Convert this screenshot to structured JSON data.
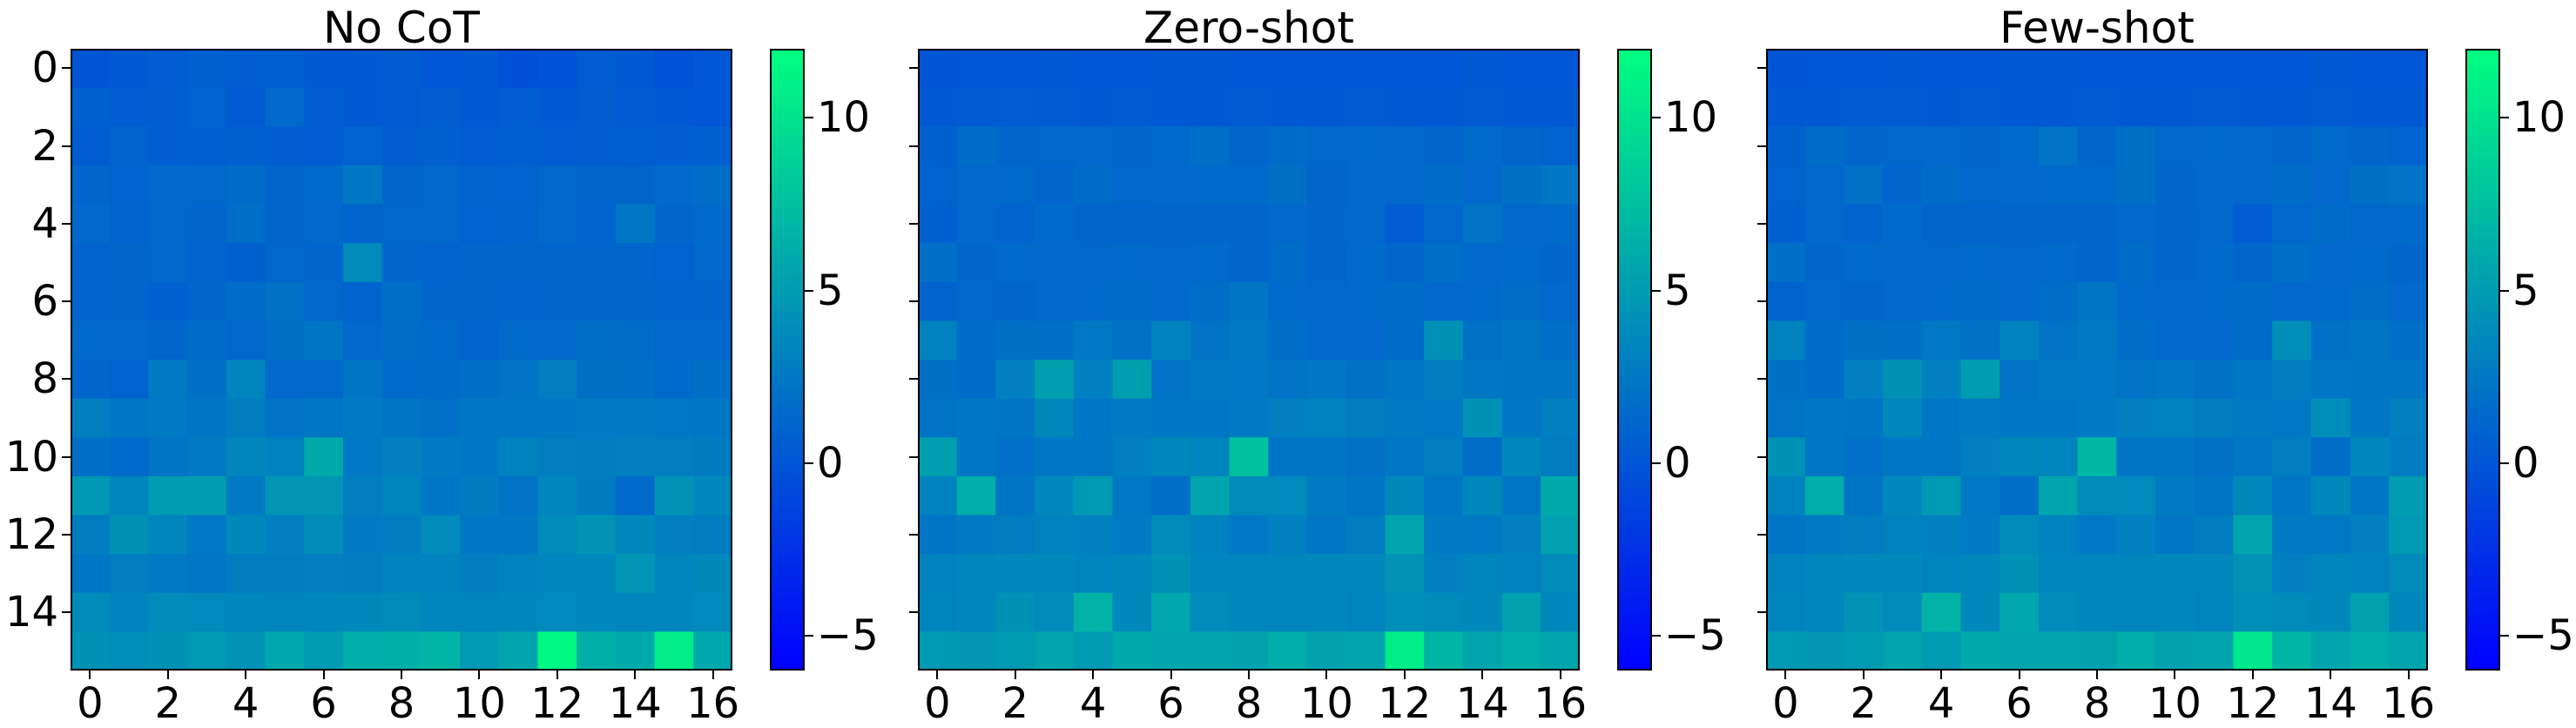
{
  "chart_data": [
    {
      "type": "heatmap",
      "title": "No CoT",
      "rows": 16,
      "cols": 17,
      "x_ticks": [
        "0",
        "2",
        "4",
        "6",
        "8",
        "10",
        "12",
        "14",
        "16"
      ],
      "y_ticks": [
        "0",
        "2",
        "4",
        "6",
        "8",
        "10",
        "12",
        "14"
      ],
      "values": [
        [
          0.0,
          0.3,
          0.5,
          0.8,
          0.6,
          0.7,
          0.2,
          0.3,
          0.4,
          0.1,
          0.3,
          -0.4,
          -0.2,
          0.5,
          0.3,
          -0.2,
          0.1
        ],
        [
          0.8,
          0.5,
          0.6,
          0.9,
          0.4,
          1.4,
          0.5,
          0.3,
          0.4,
          0.6,
          0.3,
          0.5,
          0.3,
          0.6,
          0.4,
          0.2,
          0.1
        ],
        [
          0.5,
          1.0,
          0.6,
          0.7,
          0.8,
          0.6,
          0.5,
          0.9,
          0.6,
          0.8,
          0.5,
          0.7,
          0.5,
          0.6,
          0.7,
          0.6,
          0.8
        ],
        [
          1.2,
          0.9,
          1.4,
          1.3,
          1.6,
          1.1,
          1.5,
          2.4,
          1.2,
          1.3,
          1.0,
          0.9,
          1.3,
          1.1,
          1.2,
          1.4,
          1.7
        ],
        [
          1.4,
          1.0,
          1.3,
          1.1,
          1.8,
          1.2,
          1.4,
          1.1,
          1.3,
          1.3,
          0.9,
          1.0,
          1.4,
          1.0,
          2.3,
          1.2,
          1.5
        ],
        [
          1.0,
          1.2,
          1.3,
          1.0,
          0.8,
          1.3,
          1.1,
          3.8,
          1.2,
          1.0,
          1.1,
          1.2,
          1.1,
          1.1,
          1.1,
          0.9,
          1.3
        ],
        [
          1.0,
          1.1,
          0.8,
          1.2,
          1.6,
          2.0,
          1.3,
          1.0,
          1.8,
          1.1,
          1.2,
          1.0,
          1.1,
          1.2,
          1.2,
          1.0,
          1.1
        ],
        [
          1.5,
          1.4,
          1.2,
          1.6,
          1.3,
          1.9,
          2.2,
          1.4,
          1.7,
          1.5,
          1.0,
          1.5,
          1.4,
          1.8,
          1.7,
          1.3,
          1.4
        ],
        [
          1.2,
          0.9,
          2.6,
          1.8,
          3.3,
          1.4,
          1.3,
          2.2,
          1.5,
          1.6,
          1.8,
          2.1,
          2.9,
          1.9,
          1.8,
          1.5,
          1.8
        ],
        [
          2.9,
          2.4,
          2.6,
          2.2,
          2.8,
          2.1,
          2.4,
          2.6,
          2.2,
          2.0,
          2.4,
          2.4,
          2.4,
          2.6,
          2.6,
          2.5,
          2.4
        ],
        [
          1.8,
          1.5,
          2.2,
          2.6,
          3.4,
          3.2,
          6.0,
          2.5,
          3.0,
          2.6,
          2.4,
          3.2,
          2.9,
          2.8,
          3.0,
          2.9,
          2.7
        ],
        [
          4.7,
          3.4,
          5.0,
          5.1,
          2.6,
          4.5,
          4.5,
          2.9,
          3.3,
          2.4,
          2.7,
          2.1,
          3.4,
          2.7,
          1.5,
          4.4,
          3.5
        ],
        [
          2.8,
          4.2,
          3.4,
          2.5,
          3.6,
          3.0,
          3.9,
          2.6,
          2.8,
          3.8,
          2.4,
          2.4,
          3.8,
          4.4,
          3.6,
          3.0,
          2.8
        ],
        [
          2.4,
          2.9,
          2.6,
          2.3,
          2.8,
          2.8,
          2.9,
          2.8,
          3.2,
          3.2,
          2.8,
          3.2,
          3.3,
          3.6,
          4.5,
          3.4,
          3.6
        ],
        [
          3.8,
          3.2,
          3.8,
          3.7,
          3.5,
          3.4,
          3.5,
          3.6,
          3.8,
          3.4,
          3.4,
          3.5,
          3.7,
          3.5,
          3.4,
          3.4,
          3.7
        ],
        [
          4.2,
          4.0,
          4.2,
          4.8,
          4.4,
          5.8,
          5.0,
          6.2,
          6.4,
          6.8,
          4.8,
          5.6,
          11.6,
          6.4,
          6.0,
          10.8,
          5.8
        ]
      ]
    },
    {
      "type": "heatmap",
      "title": "Zero-shot",
      "rows": 16,
      "cols": 17,
      "x_ticks": [
        "0",
        "2",
        "4",
        "6",
        "8",
        "10",
        "12",
        "14",
        "16"
      ],
      "y_ticks": [
        "0",
        "2",
        "4",
        "6",
        "8",
        "10",
        "12",
        "14"
      ],
      "values": [
        [
          0.0,
          0.1,
          0.1,
          0.2,
          0.1,
          0.1,
          0.2,
          0.2,
          0.1,
          0.1,
          0.1,
          0.1,
          0.1,
          0.1,
          0.2,
          0.1,
          0.1
        ],
        [
          0.2,
          0.4,
          0.5,
          0.4,
          0.3,
          0.4,
          0.3,
          0.2,
          0.4,
          0.3,
          0.3,
          0.4,
          0.3,
          0.3,
          0.4,
          0.2,
          0.2
        ],
        [
          0.8,
          1.6,
          1.2,
          1.3,
          1.4,
          1.2,
          1.5,
          1.8,
          1.2,
          1.6,
          1.3,
          1.5,
          1.4,
          1.2,
          1.5,
          1.2,
          0.9
        ],
        [
          0.9,
          1.3,
          1.5,
          1.1,
          1.6,
          1.3,
          1.4,
          1.5,
          1.5,
          1.9,
          1.2,
          1.4,
          1.3,
          1.6,
          1.4,
          1.9,
          2.4
        ],
        [
          0.8,
          1.4,
          1.0,
          1.5,
          1.2,
          1.1,
          1.2,
          1.2,
          1.1,
          1.4,
          1.2,
          1.3,
          0.5,
          1.3,
          2.1,
          1.3,
          1.5
        ],
        [
          1.8,
          1.2,
          1.5,
          1.4,
          1.3,
          1.5,
          1.3,
          1.5,
          1.1,
          1.6,
          1.1,
          1.5,
          1.2,
          1.8,
          1.4,
          1.5,
          1.2
        ],
        [
          1.0,
          1.3,
          1.2,
          1.4,
          1.5,
          1.6,
          1.4,
          1.7,
          2.2,
          1.5,
          1.3,
          1.5,
          1.6,
          1.4,
          1.5,
          1.7,
          1.4
        ],
        [
          3.2,
          1.6,
          1.9,
          1.8,
          2.5,
          2.0,
          3.2,
          2.1,
          2.6,
          1.7,
          1.3,
          1.4,
          1.6,
          4.3,
          2.0,
          2.2,
          1.8
        ],
        [
          1.9,
          1.6,
          3.0,
          5.2,
          3.0,
          5.2,
          2.1,
          2.6,
          2.5,
          2.1,
          2.3,
          2.0,
          2.4,
          2.8,
          2.3,
          2.2,
          2.2
        ],
        [
          2.1,
          2.4,
          2.2,
          3.6,
          2.4,
          2.6,
          2.4,
          2.4,
          2.6,
          3.0,
          3.2,
          2.8,
          2.6,
          2.5,
          4.3,
          2.4,
          3.0
        ],
        [
          5.2,
          2.4,
          2.0,
          2.4,
          2.4,
          3.0,
          3.6,
          3.3,
          7.6,
          2.2,
          2.2,
          2.0,
          2.3,
          2.9,
          1.7,
          3.5,
          2.8
        ],
        [
          3.2,
          6.2,
          2.2,
          3.5,
          4.8,
          2.5,
          1.8,
          5.6,
          3.8,
          3.7,
          2.6,
          2.2,
          3.6,
          2.4,
          3.6,
          2.4,
          6.0
        ],
        [
          2.2,
          2.6,
          2.8,
          3.2,
          3.1,
          2.6,
          3.8,
          3.2,
          2.5,
          3.0,
          2.4,
          2.8,
          5.6,
          2.6,
          2.5,
          3.0,
          5.4
        ],
        [
          3.2,
          3.4,
          3.6,
          3.6,
          3.3,
          3.5,
          4.2,
          3.3,
          3.3,
          3.4,
          3.6,
          3.6,
          4.4,
          3.0,
          3.3,
          3.2,
          3.8
        ],
        [
          3.3,
          3.5,
          4.2,
          3.8,
          6.6,
          3.6,
          5.8,
          3.8,
          3.5,
          3.4,
          3.5,
          3.3,
          4.1,
          3.8,
          3.6,
          5.3,
          3.5
        ],
        [
          4.8,
          4.6,
          4.9,
          5.6,
          4.9,
          6.0,
          5.6,
          5.6,
          5.4,
          6.2,
          5.4,
          5.6,
          10.8,
          6.8,
          5.6,
          6.2,
          5.6
        ]
      ]
    },
    {
      "type": "heatmap",
      "title": "Few-shot",
      "rows": 16,
      "cols": 17,
      "x_ticks": [
        "0",
        "2",
        "4",
        "6",
        "8",
        "10",
        "12",
        "14",
        "16"
      ],
      "y_ticks": [
        "0",
        "2",
        "4",
        "6",
        "8",
        "10",
        "12",
        "14"
      ],
      "values": [
        [
          0.0,
          0.1,
          0.1,
          0.2,
          0.1,
          0.1,
          0.2,
          0.2,
          0.1,
          0.1,
          0.1,
          0.1,
          0.1,
          0.1,
          0.2,
          0.1,
          0.1
        ],
        [
          0.2,
          0.3,
          0.4,
          0.4,
          0.3,
          0.4,
          0.3,
          0.2,
          0.4,
          0.3,
          0.3,
          0.4,
          0.3,
          0.3,
          0.4,
          0.2,
          0.2
        ],
        [
          0.8,
          1.6,
          1.2,
          1.3,
          1.4,
          1.2,
          1.5,
          2.1,
          1.2,
          1.9,
          1.3,
          1.5,
          1.4,
          1.2,
          1.5,
          1.2,
          0.9
        ],
        [
          0.9,
          1.3,
          2.0,
          1.1,
          1.6,
          1.3,
          1.4,
          1.5,
          1.5,
          1.9,
          1.2,
          1.4,
          1.3,
          1.6,
          1.4,
          1.9,
          2.1
        ],
        [
          0.8,
          1.4,
          1.0,
          1.5,
          1.2,
          1.1,
          1.2,
          1.2,
          1.1,
          1.4,
          1.2,
          1.3,
          0.5,
          1.3,
          1.6,
          1.3,
          1.5
        ],
        [
          1.8,
          1.2,
          1.5,
          1.4,
          1.3,
          1.5,
          1.3,
          1.5,
          1.1,
          1.6,
          1.1,
          1.5,
          1.2,
          1.8,
          1.4,
          1.5,
          1.2
        ],
        [
          1.0,
          1.3,
          1.2,
          1.4,
          1.5,
          1.6,
          1.4,
          1.7,
          2.2,
          1.5,
          1.3,
          1.5,
          1.6,
          1.4,
          1.5,
          1.7,
          1.4
        ],
        [
          3.2,
          1.6,
          1.9,
          1.8,
          2.5,
          2.0,
          3.2,
          2.1,
          2.6,
          1.7,
          1.3,
          1.4,
          1.6,
          4.0,
          2.0,
          2.2,
          1.8
        ],
        [
          1.9,
          1.6,
          3.0,
          4.2,
          3.0,
          5.0,
          2.1,
          2.6,
          2.5,
          2.1,
          2.3,
          2.0,
          2.4,
          2.8,
          2.3,
          2.2,
          2.2
        ],
        [
          2.1,
          2.4,
          2.2,
          3.6,
          2.4,
          2.6,
          2.4,
          2.4,
          2.6,
          3.0,
          3.2,
          2.8,
          2.6,
          2.5,
          4.0,
          2.4,
          3.0
        ],
        [
          4.2,
          2.4,
          2.0,
          2.4,
          2.4,
          3.0,
          3.6,
          3.3,
          7.0,
          2.2,
          2.2,
          2.0,
          2.3,
          2.9,
          1.7,
          3.5,
          2.8
        ],
        [
          3.2,
          6.2,
          2.2,
          3.5,
          4.8,
          2.5,
          1.8,
          5.6,
          3.8,
          3.7,
          2.6,
          2.2,
          3.6,
          2.4,
          3.6,
          2.4,
          5.0
        ],
        [
          2.2,
          2.6,
          2.8,
          3.2,
          3.1,
          2.6,
          3.8,
          3.2,
          2.5,
          3.0,
          2.4,
          2.8,
          5.6,
          2.6,
          2.5,
          3.0,
          4.8
        ],
        [
          3.2,
          3.4,
          3.6,
          3.6,
          3.3,
          3.5,
          4.2,
          3.3,
          3.3,
          3.4,
          3.6,
          3.6,
          4.4,
          3.0,
          3.3,
          3.2,
          3.8
        ],
        [
          3.3,
          3.5,
          4.4,
          3.8,
          6.6,
          3.6,
          5.8,
          3.8,
          3.5,
          3.4,
          3.5,
          3.3,
          4.1,
          3.8,
          3.6,
          5.3,
          3.5
        ],
        [
          4.8,
          4.6,
          4.9,
          5.6,
          4.9,
          6.0,
          5.6,
          5.6,
          5.4,
          6.2,
          5.4,
          5.6,
          10.4,
          6.8,
          5.6,
          6.2,
          5.6
        ]
      ]
    }
  ],
  "colorbar": {
    "min": -6,
    "max": 12,
    "ticks": [
      -5,
      0,
      5,
      10
    ],
    "tick_labels": [
      "−5",
      "0",
      "5",
      "10"
    ],
    "colormap": "winter",
    "color_low": "#0000ff",
    "color_high": "#00ff80"
  }
}
